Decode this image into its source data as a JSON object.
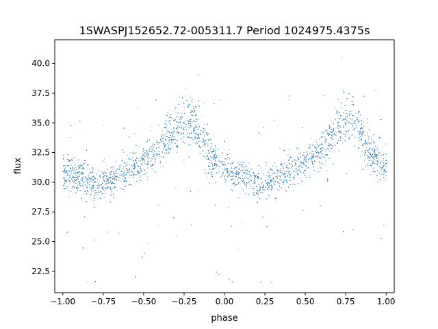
{
  "chart_data": {
    "type": "scatter",
    "title": "1SWASPJ152652.72-005311.7 Period 1024975.4375s",
    "xlabel": "phase",
    "ylabel": "flux",
    "xlim": [
      -1.05,
      1.05
    ],
    "ylim": [
      20.7,
      42.0
    ],
    "x_ticks": [
      -1.0,
      -0.75,
      -0.5,
      -0.25,
      0.0,
      0.25,
      0.5,
      0.75,
      1.0
    ],
    "x_tick_labels": [
      "−1.00",
      "−0.75",
      "−0.50",
      "−0.25",
      "0.00",
      "0.25",
      "0.50",
      "0.75",
      "1.00"
    ],
    "y_ticks": [
      22.5,
      25.0,
      27.5,
      30.0,
      32.5,
      35.0,
      37.5,
      40.0
    ],
    "y_tick_labels": [
      "22.5",
      "25.0",
      "27.5",
      "30.0",
      "32.5",
      "35.0",
      "37.5",
      "40.0"
    ],
    "grid": false,
    "legend": "none",
    "marker_color": "#1f77b4",
    "series": [
      {
        "x_range": [
          -1.0,
          1.0
        ],
        "trend_phase": [
          0.0,
          0.1,
          0.2,
          0.3,
          0.4,
          0.5,
          0.6,
          0.7,
          0.75,
          0.8,
          0.85,
          0.9,
          1.0
        ],
        "trend_flux": [
          31.0,
          30.5,
          29.8,
          30.2,
          31.0,
          31.8,
          32.8,
          34.5,
          35.5,
          35.3,
          34.0,
          32.5,
          31.2
        ]
      }
    ]
  }
}
